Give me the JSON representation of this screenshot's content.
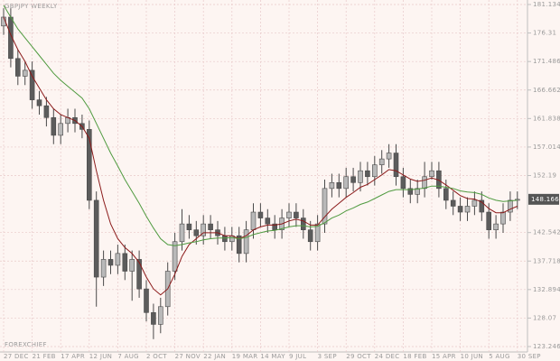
{
  "chart_data": {
    "type": "candlestick",
    "title": "GBPJPY WEEKLY",
    "watermark": "FOREXCHIEF",
    "categories": [
      "27 DEC",
      null,
      null,
      null,
      "21 FEB",
      null,
      null,
      null,
      "17 APR",
      null,
      null,
      null,
      "12 JUN",
      null,
      null,
      null,
      "7 AUG",
      null,
      null,
      null,
      "2 OCT",
      null,
      null,
      null,
      "27 NOV",
      null,
      null,
      null,
      "22 JAN",
      null,
      null,
      null,
      "19 MAR",
      null,
      null,
      null,
      "14 MAY",
      null,
      null,
      null,
      "9 JUL",
      null,
      null,
      null,
      "3 SEP",
      null,
      null,
      null,
      "29 OCT",
      null,
      null,
      null,
      "24 DEC",
      null,
      null,
      null,
      "18 FEB",
      null,
      null,
      null,
      "15 APR",
      null,
      null,
      null,
      "10 JUN",
      null,
      null,
      null,
      "5 AUG",
      null,
      null,
      null,
      "30 SEP"
    ],
    "open": [
      177.5,
      179,
      172,
      169,
      170,
      165,
      164,
      162,
      159,
      161,
      162,
      161,
      160,
      148,
      135,
      138,
      137,
      139,
      136,
      138,
      133,
      129,
      127,
      130,
      136,
      141,
      144,
      143,
      142,
      144,
      143,
      142,
      141,
      142,
      139,
      143,
      146,
      145,
      144,
      143,
      145,
      146,
      145,
      143,
      141,
      144,
      150,
      151,
      150,
      152,
      151,
      153,
      152,
      154,
      155,
      156,
      152,
      150,
      149,
      150,
      152,
      153,
      150,
      148,
      147,
      146,
      147,
      148,
      146,
      143,
      144,
      146,
      148
    ],
    "high": [
      180.5,
      180.5,
      173.5,
      171.5,
      171.5,
      166.5,
      165.5,
      163.5,
      162.5,
      163.5,
      163.5,
      162.5,
      161.5,
      149.5,
      139.5,
      139.5,
      140.5,
      140.5,
      139.5,
      139.5,
      134.5,
      130.5,
      131.5,
      137.5,
      142.5,
      146.5,
      145.5,
      144.5,
      145.5,
      145.5,
      144.5,
      143.5,
      143.5,
      143.5,
      144.5,
      147.5,
      147.5,
      146.5,
      145.5,
      146.5,
      147.5,
      147.5,
      146.5,
      144.5,
      145.5,
      151.5,
      152.5,
      152.5,
      153.5,
      153.5,
      154.5,
      154.5,
      155.5,
      156.5,
      157.5,
      157.5,
      153.5,
      151.5,
      151.5,
      154.5,
      154.5,
      154.5,
      151.5,
      149.5,
      148.5,
      148.5,
      149.5,
      149.5,
      147.5,
      145.5,
      147.5,
      149.5,
      149.5
    ],
    "low": [
      176,
      170.5,
      167.5,
      167.5,
      163.5,
      162.5,
      160.5,
      157.5,
      157.5,
      159.5,
      159.5,
      158.5,
      146.5,
      130,
      133.5,
      135.5,
      135.5,
      134.5,
      131,
      131.5,
      127.5,
      124.5,
      125.5,
      128.5,
      134.5,
      139.5,
      141.5,
      140.5,
      140.5,
      141.5,
      140.5,
      139.5,
      139.5,
      137.5,
      137.5,
      141.5,
      143.5,
      142.5,
      141.5,
      141.5,
      143.5,
      143.5,
      141.5,
      139.5,
      139.5,
      142.5,
      148.5,
      148.5,
      148.5,
      149.5,
      149.5,
      150.5,
      150.5,
      152.5,
      153.5,
      150.5,
      148.5,
      147.5,
      147.5,
      148.5,
      151.5,
      148.5,
      146.5,
      145.5,
      144.5,
      144.5,
      145.5,
      144.5,
      141.5,
      141.5,
      142.5,
      144.5,
      146.5
    ],
    "close": [
      179,
      172,
      169,
      170,
      165,
      164,
      162,
      159,
      161,
      162,
      161,
      160,
      148,
      135,
      138,
      137,
      139,
      136,
      138,
      133,
      129,
      127,
      130,
      136,
      141,
      144,
      143,
      142,
      144,
      143,
      142,
      141,
      142,
      139,
      143,
      146,
      145,
      144,
      143,
      145,
      146,
      145,
      143,
      141,
      144,
      150,
      151,
      150,
      152,
      151,
      153,
      152,
      154,
      155,
      156,
      152,
      150,
      149,
      150,
      152,
      153,
      150,
      148,
      147,
      146,
      147,
      148,
      146,
      143,
      144,
      146,
      148,
      148.166
    ],
    "up_color": "#b9b9b9",
    "down_color": "#5c5c5c",
    "moving_averages": [
      {
        "color": "#8b1a1a",
        "values": [
          179,
          176,
          173.5,
          171.5,
          169,
          167,
          165,
          163.5,
          162.5,
          162,
          161.5,
          160.5,
          158.5,
          153,
          148,
          144,
          141.5,
          140,
          139,
          137.5,
          135,
          133,
          132,
          133,
          135.5,
          138.5,
          140.5,
          141.5,
          142.5,
          142.5,
          142.5,
          142,
          142,
          141.5,
          142,
          143,
          143.5,
          143.8,
          143.8,
          144,
          144.5,
          144.8,
          144.5,
          143.8,
          143.8,
          145.2,
          146.5,
          147.5,
          148.5,
          149.3,
          150.2,
          150.7,
          151.5,
          152.3,
          153.2,
          153,
          152.3,
          151.6,
          151.2,
          151.4,
          151.8,
          151.4,
          150.6,
          149.7,
          148.8,
          148.3,
          148.2,
          147.7,
          146.6,
          145.9,
          145.9,
          146.5,
          147
        ]
      },
      {
        "color": "#4f9a3f",
        "values": [
          181,
          179,
          177,
          175.5,
          174,
          172.5,
          171,
          169.5,
          168.3,
          167.3,
          166.3,
          165.3,
          163.5,
          161,
          158.5,
          156,
          153.8,
          151.5,
          149.5,
          147.5,
          145.3,
          143.3,
          141.5,
          140.5,
          140.3,
          140.5,
          140.8,
          141,
          141.3,
          141.5,
          141.6,
          141.6,
          141.7,
          141.5,
          141.7,
          142.2,
          142.5,
          142.8,
          142.9,
          143.2,
          143.5,
          143.7,
          143.7,
          143.5,
          143.6,
          144.2,
          145,
          145.5,
          146.2,
          146.7,
          147.3,
          147.7,
          148.3,
          148.9,
          149.5,
          149.8,
          149.8,
          149.8,
          149.9,
          150.1,
          150.4,
          150.4,
          150.2,
          150,
          149.6,
          149.4,
          149.3,
          149,
          148.4,
          148,
          147.8,
          147.9,
          148
        ]
      }
    ],
    "ylim": [
      123.246,
      181.134
    ],
    "yticks": [
      181.134,
      176.31,
      171.486,
      166.662,
      161.838,
      157.014,
      152.19,
      142.542,
      137.718,
      132.894,
      128.07,
      123.246
    ],
    "grid": true
  }
}
